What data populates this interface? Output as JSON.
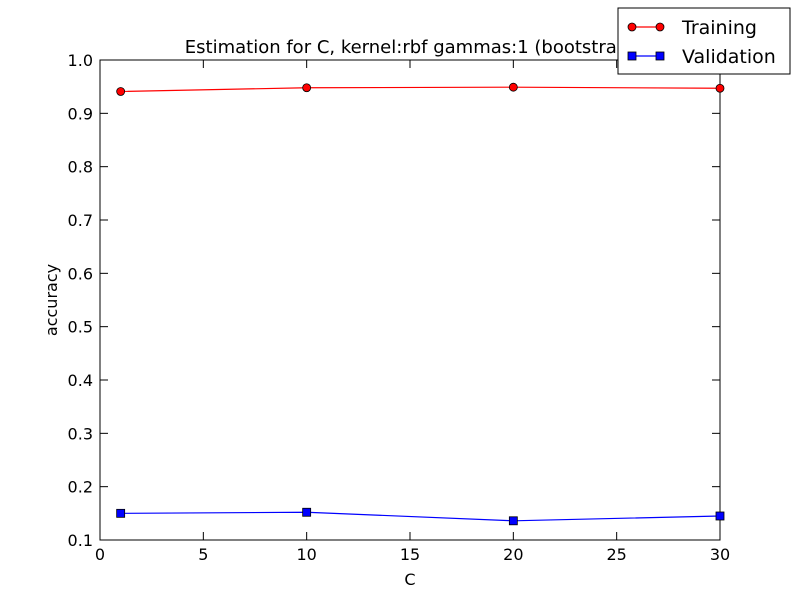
{
  "chart_data": {
    "type": "line",
    "title": "Estimation for C, kernel:rbf gammas:1 (bootstrap)",
    "xlabel": "C",
    "ylabel": "accuracy",
    "xlim": [
      0,
      30
    ],
    "ylim": [
      0.1,
      1.0
    ],
    "xticks": [
      "0",
      "5",
      "10",
      "15",
      "20",
      "25",
      "30"
    ],
    "yticks": [
      "0.1",
      "0.2",
      "0.3",
      "0.4",
      "0.5",
      "0.6",
      "0.7",
      "0.8",
      "0.9",
      "1.0"
    ],
    "grid": false,
    "legend": "top-right",
    "series": [
      {
        "name": "Training",
        "color": "#ff0000",
        "marker": "circle",
        "x": [
          1,
          10,
          20,
          30
        ],
        "y": [
          0.941,
          0.948,
          0.949,
          0.947
        ]
      },
      {
        "name": "Validation",
        "color": "#0000ff",
        "marker": "square",
        "x": [
          1,
          10,
          20,
          30
        ],
        "y": [
          0.15,
          0.152,
          0.136,
          0.145
        ]
      }
    ]
  }
}
